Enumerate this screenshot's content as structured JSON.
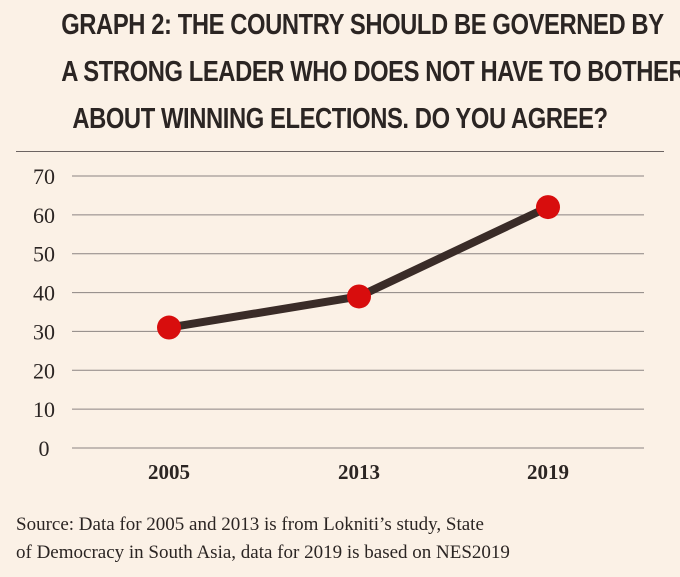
{
  "header": {
    "title_lines": [
      "GRAPH 2: THE COUNTRY SHOULD BE GOVERNED BY",
      "A STRONG LEADER WHO DOES NOT HAVE TO BOTHER",
      "ABOUT WINNING ELECTIONS.  DO YOU AGREE?"
    ]
  },
  "chart_data": {
    "type": "line",
    "title": "GRAPH 2: THE COUNTRY SHOULD BE GOVERNED BY A STRONG LEADER WHO DOES NOT HAVE TO BOTHER ABOUT WINNING ELECTIONS.  DO YOU AGREE?",
    "categories": [
      "2005",
      "2013",
      "2019"
    ],
    "series": [
      {
        "values": [
          31,
          39,
          62
        ]
      }
    ],
    "yticks": [
      "0",
      "10",
      "20",
      "30",
      "40",
      "50",
      "60",
      "70"
    ],
    "ylim": [
      0,
      70
    ],
    "xlabel": "",
    "ylabel": "",
    "grid": true,
    "legend": "none",
    "colors": {
      "line": "#3a2c28",
      "marker": "#d80d0d",
      "grid": "#8b8482",
      "text": "#2b2523"
    }
  },
  "footer": {
    "source_lines": [
      "Source: Data for 2005 and 2013 is from Lokniti’s study, State",
      "of Democracy in South Asia, data for 2019 is based on NES2019"
    ]
  }
}
